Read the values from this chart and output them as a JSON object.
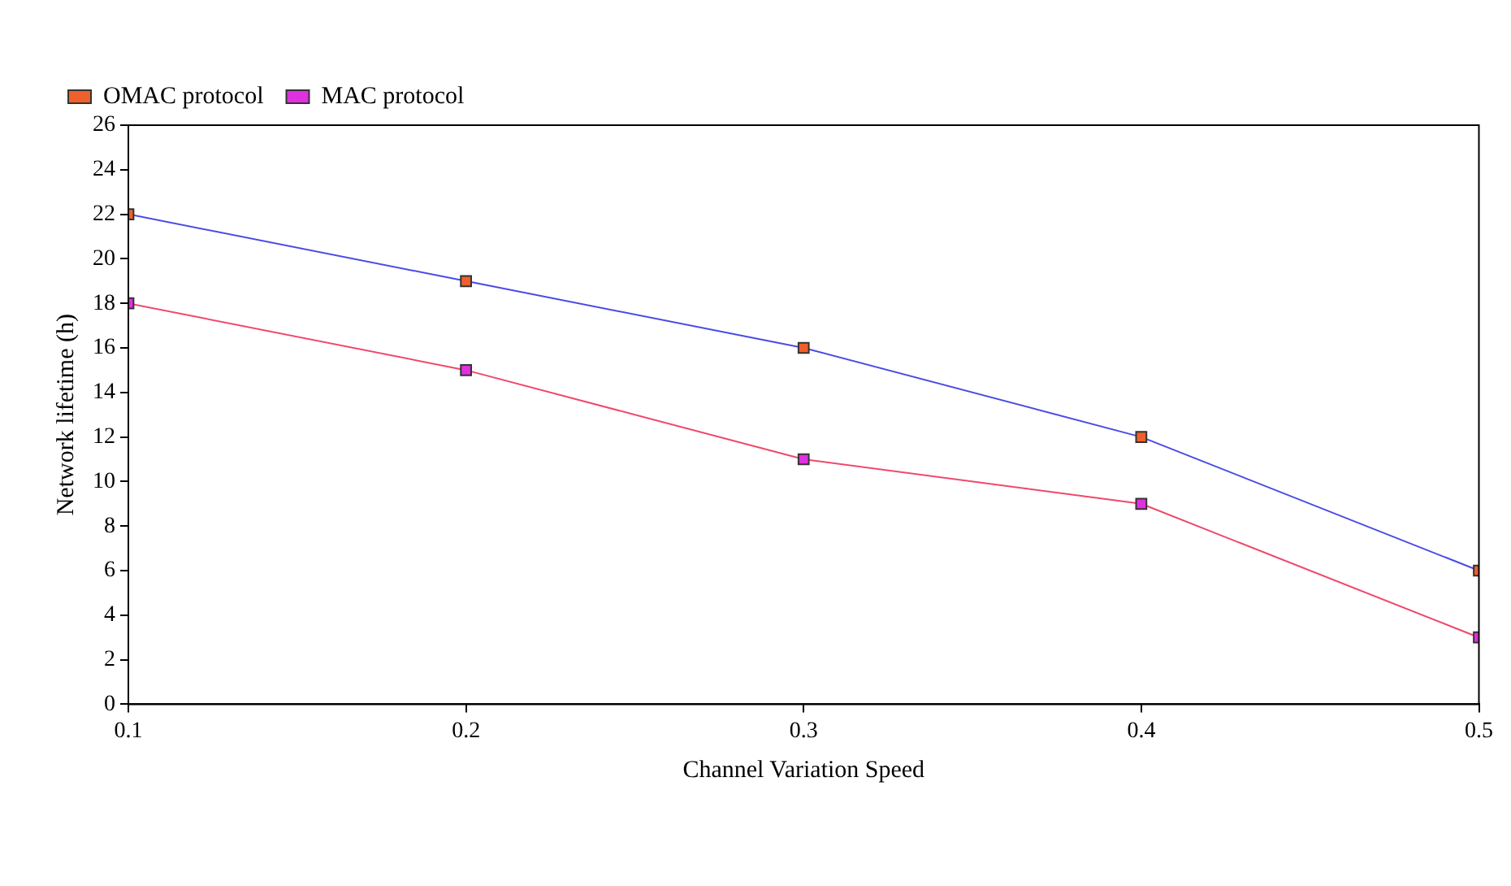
{
  "chart_data": {
    "type": "line",
    "xlabel": "Channel Variation Speed",
    "ylabel": "Network lifetime (h)",
    "x": [
      0.1,
      0.2,
      0.3,
      0.4,
      0.5
    ],
    "series": [
      {
        "name": "OMAC protocol",
        "color": "#4a4ae6",
        "colors": [
          "#f0602a",
          "#f0602a",
          "#f0602a",
          "#f0602a",
          "#f0602a"
        ],
        "values": [
          22,
          19,
          16,
          12,
          6
        ]
      },
      {
        "name": "MAC protocol",
        "color": "#f0486a",
        "colors": [
          "#e030e0",
          "#e030e0",
          "#e030e0",
          "#e030e0",
          "#e030e0"
        ],
        "values": [
          18,
          15,
          11,
          9,
          3
        ]
      }
    ],
    "xlim": [
      0.1,
      0.5
    ],
    "xticks": [
      0.1,
      0.2,
      0.3,
      0.4,
      0.5
    ],
    "ylim": [
      0,
      26
    ],
    "yticks": [
      0,
      2,
      4,
      6,
      8,
      10,
      12,
      14,
      16,
      18,
      20,
      22,
      24,
      26
    ],
    "grid": false,
    "legend": "top left",
    "marker": "square",
    "line_style": "solid"
  }
}
